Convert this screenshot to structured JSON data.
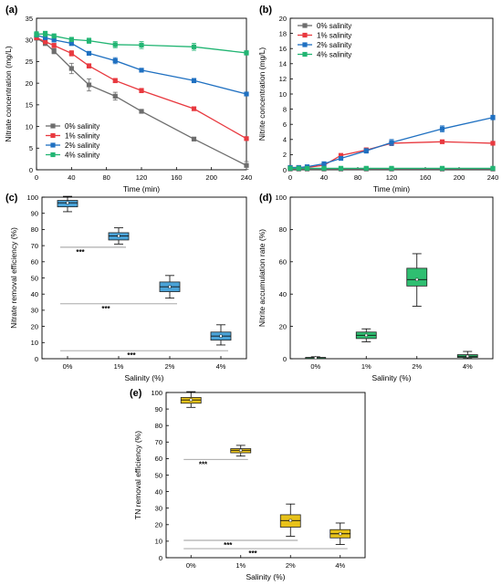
{
  "colors": {
    "s0": "#6d6d6d",
    "s1": "#e8393f",
    "s2": "#1f70c1",
    "s4": "#22b573",
    "boxC": "#4aa3d8",
    "boxD": "#2fbf71",
    "boxE": "#e8c21a"
  },
  "chart_data": [
    {
      "panel": "(a)",
      "type": "line",
      "xlabel": "Time (min)",
      "ylabel": "Nitrate concentration (mg/L)",
      "xlim": [
        0,
        240
      ],
      "ylim": [
        0,
        35
      ],
      "xticks": [
        0,
        40,
        80,
        120,
        160,
        200,
        240
      ],
      "yticks": [
        0,
        5,
        10,
        15,
        20,
        25,
        30,
        35
      ],
      "legend_position": "bottom-left",
      "series": [
        {
          "name": "0% salinity",
          "color": "#6d6d6d",
          "marker": "square",
          "x": [
            0,
            10,
            20,
            40,
            60,
            90,
            120,
            180,
            240
          ],
          "y": [
            30.4,
            29.2,
            27.4,
            23.4,
            19.6,
            17.0,
            13.5,
            7.1,
            1.0
          ],
          "err": [
            0.4,
            0.5,
            0.6,
            1.2,
            1.4,
            0.9,
            0.4,
            0.4,
            0.9
          ]
        },
        {
          "name": "1% salinity",
          "color": "#e8393f",
          "marker": "square",
          "x": [
            0,
            10,
            20,
            40,
            60,
            90,
            120,
            180,
            240
          ],
          "y": [
            30.5,
            29.6,
            28.7,
            26.9,
            24.0,
            20.6,
            18.3,
            14.1,
            7.2
          ],
          "err": [
            0.4,
            0.5,
            0.5,
            0.6,
            0.5,
            0.5,
            0.5,
            0.4,
            0.4
          ]
        },
        {
          "name": "2% salinity",
          "color": "#1f70c1",
          "marker": "square",
          "x": [
            0,
            10,
            20,
            40,
            60,
            90,
            120,
            180,
            240
          ],
          "y": [
            31.1,
            30.5,
            30.0,
            29.2,
            26.9,
            25.2,
            23.0,
            20.6,
            17.5
          ],
          "err": [
            0.4,
            0.4,
            0.5,
            0.5,
            0.4,
            0.7,
            0.4,
            0.5,
            0.4
          ]
        },
        {
          "name": "4% salinity",
          "color": "#22b573",
          "marker": "square",
          "x": [
            0,
            10,
            20,
            40,
            60,
            90,
            120,
            180,
            240
          ],
          "y": [
            31.3,
            31.4,
            30.9,
            30.1,
            29.8,
            28.9,
            28.8,
            28.4,
            27.0
          ],
          "err": [
            0.6,
            0.6,
            0.5,
            0.5,
            0.6,
            0.7,
            0.8,
            0.8,
            0.5
          ]
        }
      ]
    },
    {
      "panel": "(b)",
      "type": "line",
      "xlabel": "Time (min)",
      "ylabel": "Nitrite concentration (mg/L)",
      "xlim": [
        0,
        240
      ],
      "ylim": [
        0,
        20
      ],
      "xticks": [
        0,
        40,
        80,
        120,
        160,
        200,
        240
      ],
      "yticks": [
        0,
        2,
        4,
        6,
        8,
        10,
        12,
        14,
        16,
        18,
        20
      ],
      "legend_position": "top-left",
      "series": [
        {
          "name": "0% salinity",
          "color": "#6d6d6d",
          "marker": "square",
          "x": [
            0,
            10,
            20,
            40,
            60,
            90,
            120,
            180,
            240
          ],
          "y": [
            0.1,
            0.1,
            0.1,
            0.1,
            0.1,
            0.1,
            0.1,
            0.1,
            0.1
          ],
          "err": [
            0.05,
            0.05,
            0.05,
            0.05,
            0.05,
            0.05,
            0.05,
            0.05,
            0.05
          ]
        },
        {
          "name": "1% salinity",
          "color": "#e8393f",
          "marker": "square",
          "x": [
            0,
            10,
            20,
            40,
            60,
            90,
            120,
            180,
            240
          ],
          "y": [
            0.3,
            0.3,
            0.3,
            0.6,
            1.9,
            2.6,
            3.5,
            3.7,
            3.5
          ],
          "err": [
            0.1,
            0.1,
            0.1,
            0.1,
            0.2,
            0.3,
            0.3,
            0.2,
            0.2
          ]
        },
        {
          "name": "2% salinity",
          "color": "#1f70c1",
          "marker": "square",
          "x": [
            0,
            10,
            20,
            40,
            60,
            90,
            120,
            180,
            240
          ],
          "y": [
            0.3,
            0.3,
            0.4,
            0.8,
            1.5,
            2.5,
            3.6,
            5.4,
            6.9
          ],
          "err": [
            0.1,
            0.1,
            0.1,
            0.1,
            0.2,
            0.3,
            0.4,
            0.4,
            0.3
          ]
        },
        {
          "name": "4% salinity",
          "color": "#22b573",
          "marker": "square",
          "x": [
            0,
            10,
            20,
            40,
            60,
            90,
            120,
            180,
            240
          ],
          "y": [
            0.2,
            0.2,
            0.2,
            0.2,
            0.2,
            0.2,
            0.2,
            0.2,
            0.2
          ],
          "err": [
            0.05,
            0.05,
            0.05,
            0.05,
            0.05,
            0.05,
            0.05,
            0.05,
            0.05
          ]
        }
      ]
    },
    {
      "panel": "(c)",
      "type": "box",
      "xlabel": "Salinity (%)",
      "ylabel": "Nitrate removal efficiency (%)",
      "ylim": [
        0,
        100
      ],
      "yticks": [
        0,
        10,
        20,
        30,
        40,
        50,
        60,
        70,
        80,
        90,
        100
      ],
      "categories": [
        "0%",
        "1%",
        "2%",
        "4%"
      ],
      "boxes": [
        {
          "min": 91,
          "q1": 94,
          "median": 96.5,
          "mean": 96.5,
          "q3": 98,
          "max": 100.5
        },
        {
          "min": 71,
          "q1": 73.5,
          "median": 76,
          "mean": 76,
          "q3": 78,
          "max": 81
        },
        {
          "min": 37.5,
          "q1": 41.5,
          "median": 44.5,
          "mean": 44.5,
          "q3": 47.5,
          "max": 51.5
        },
        {
          "min": 8.5,
          "q1": 11.5,
          "median": 14,
          "mean": 14,
          "q3": 16.5,
          "max": 21
        }
      ],
      "significance": [
        {
          "from": 0,
          "to": 1,
          "y": 69,
          "label": "***"
        },
        {
          "from": 0,
          "to": 2,
          "y": 34,
          "label": "***"
        },
        {
          "from": 0,
          "to": 3,
          "y": 5,
          "label": "***"
        }
      ]
    },
    {
      "panel": "(d)",
      "type": "box",
      "xlabel": "Salinity (%)",
      "ylabel": "Nitrite accumulation rate (%)",
      "ylim": [
        0,
        100
      ],
      "yticks": [
        0,
        20,
        40,
        60,
        80,
        100
      ],
      "categories": [
        "0%",
        "1%",
        "2%",
        "4%"
      ],
      "boxes": [
        {
          "min": 0.2,
          "q1": 0.4,
          "median": 0.6,
          "mean": 0.6,
          "q3": 0.8,
          "max": 1.2
        },
        {
          "min": 10.5,
          "q1": 12.5,
          "median": 14.5,
          "mean": 14.5,
          "q3": 16.5,
          "max": 18.5
        },
        {
          "min": 32.5,
          "q1": 45,
          "median": 49,
          "mean": 49,
          "q3": 56,
          "max": 65
        },
        {
          "min": 0.2,
          "q1": 0.8,
          "median": 1.5,
          "mean": 1.5,
          "q3": 2.5,
          "max": 4.5
        }
      ]
    },
    {
      "panel": "(e)",
      "type": "box",
      "xlabel": "Salinity (%)",
      "ylabel": "TN removal efficiency (%)",
      "ylim": [
        0,
        100
      ],
      "yticks": [
        0,
        10,
        20,
        30,
        40,
        50,
        60,
        70,
        80,
        90,
        100
      ],
      "categories": [
        "0%",
        "1%",
        "2%",
        "4%"
      ],
      "boxes": [
        {
          "min": 91,
          "q1": 93.5,
          "median": 95.5,
          "mean": 95.5,
          "q3": 97,
          "max": 100.5
        },
        {
          "min": 61.5,
          "q1": 63.5,
          "median": 65,
          "mean": 65,
          "q3": 66,
          "max": 68
        },
        {
          "min": 13,
          "q1": 18.5,
          "median": 22.5,
          "mean": 22.5,
          "q3": 26,
          "max": 32.5
        },
        {
          "min": 8,
          "q1": 12,
          "median": 14.5,
          "mean": 14.5,
          "q3": 17,
          "max": 21
        }
      ],
      "significance": [
        {
          "from": 0,
          "to": 1,
          "y": 59.5,
          "label": "***"
        },
        {
          "from": 0,
          "to": 2,
          "y": 10.5,
          "label": "***"
        },
        {
          "from": 0,
          "to": 3,
          "y": 5.5,
          "label": "***"
        }
      ]
    }
  ]
}
